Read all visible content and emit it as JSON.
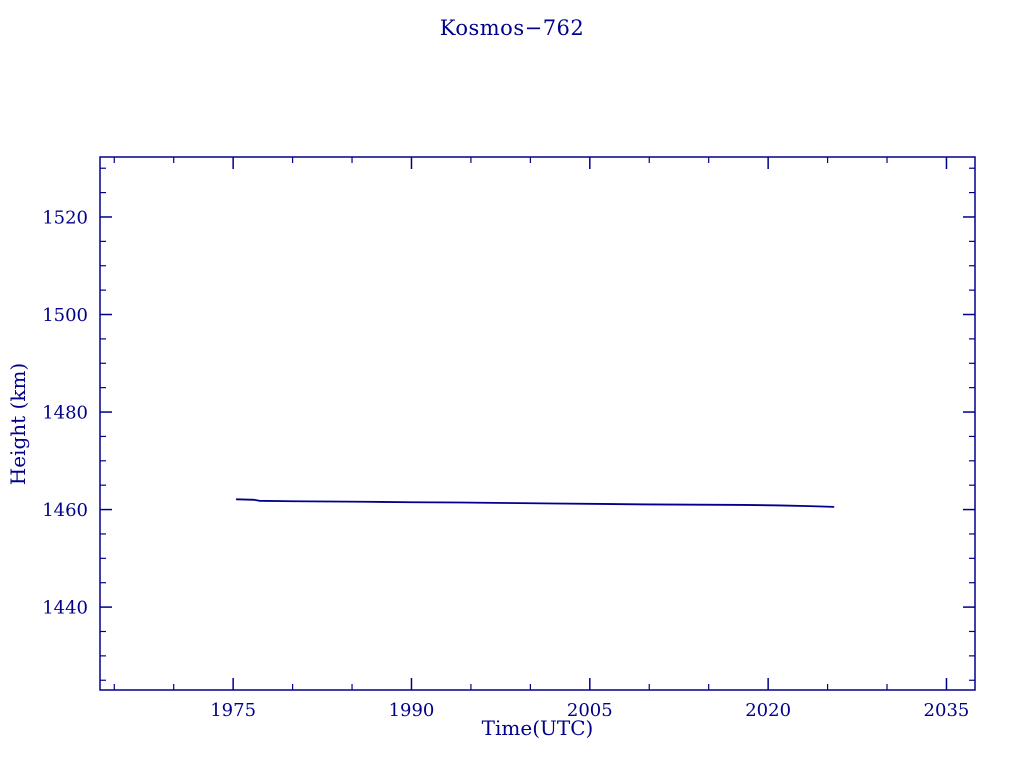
{
  "chart_data": {
    "type": "line",
    "title": "Kosmos−762",
    "xlabel": "Time(UTC)",
    "ylabel": "Height (km)",
    "xlim": [
      1963.8,
      2037.4
    ],
    "ylim": [
      1423.0,
      1532.3
    ],
    "x_ticks": [
      1975,
      1990,
      2005,
      2020,
      2035
    ],
    "y_ticks": [
      1440,
      1460,
      1480,
      1500,
      1520
    ],
    "x_minor_step": 5,
    "y_minor_step": 5,
    "grid": false,
    "legend": "none",
    "axis_color": "#00008B",
    "line_color": "#00008B",
    "series": [
      {
        "name": "height",
        "x": [
          1975.3,
          1976.8,
          1977.2,
          1980.0,
          1983.0,
          1986.0,
          1990.0,
          1994.0,
          1998.0,
          2002.0,
          2006.0,
          2010.0,
          2014.0,
          2018.0,
          2021.0,
          2023.5,
          2025.5
        ],
        "y": [
          1462.1,
          1462.0,
          1461.8,
          1461.7,
          1461.65,
          1461.6,
          1461.5,
          1461.45,
          1461.35,
          1461.25,
          1461.15,
          1461.05,
          1461.0,
          1460.95,
          1460.85,
          1460.7,
          1460.55
        ]
      }
    ]
  }
}
